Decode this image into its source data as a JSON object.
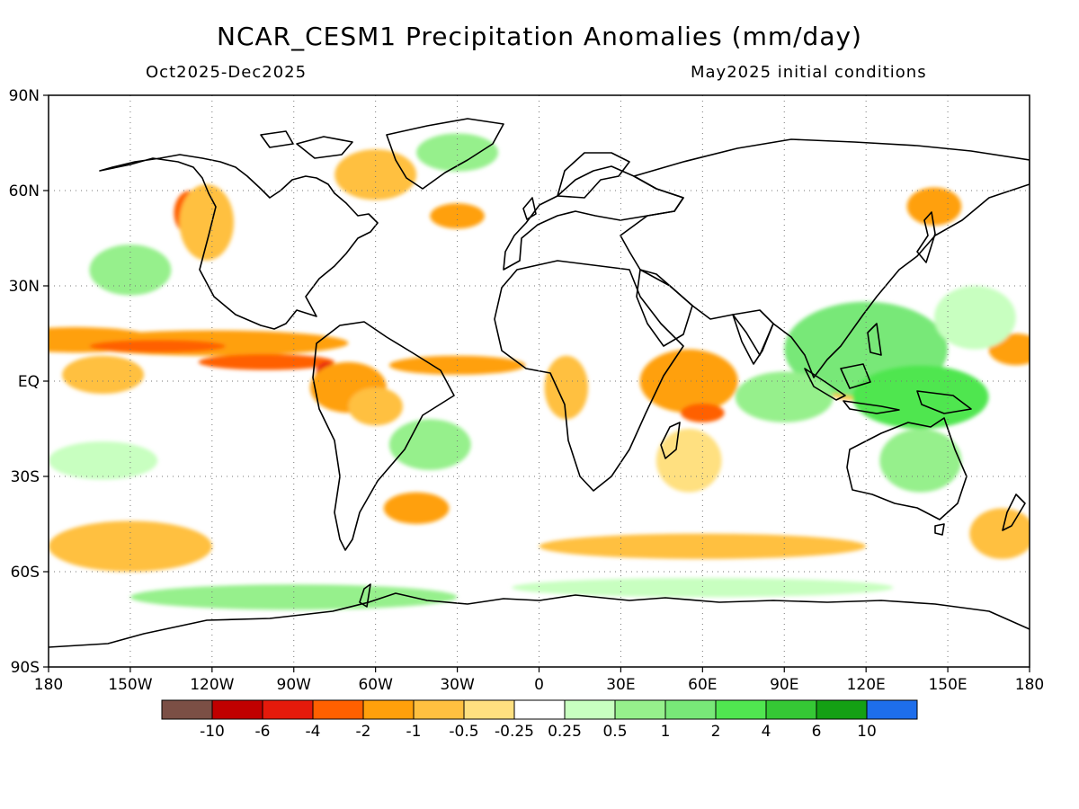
{
  "title": "NCAR_CESM1 Precipitation Anomalies (mm/day)",
  "subtitle_left": "Oct2025-Dec2025",
  "subtitle_right": "May2025 initial conditions",
  "map": {
    "projection": "equirectangular",
    "lon_range": [
      -180,
      180
    ],
    "lat_range": [
      -90,
      90
    ],
    "grid": "dotted",
    "lat_ticks": [
      {
        "value": 90,
        "label": "90N"
      },
      {
        "value": 60,
        "label": "60N"
      },
      {
        "value": 30,
        "label": "30N"
      },
      {
        "value": 0,
        "label": "EQ"
      },
      {
        "value": -30,
        "label": "30S"
      },
      {
        "value": -60,
        "label": "60S"
      },
      {
        "value": -90,
        "label": "90S"
      }
    ],
    "lon_ticks": [
      {
        "value": -180,
        "label": "180"
      },
      {
        "value": -150,
        "label": "150W"
      },
      {
        "value": -120,
        "label": "120W"
      },
      {
        "value": -90,
        "label": "90W"
      },
      {
        "value": -60,
        "label": "60W"
      },
      {
        "value": -30,
        "label": "30W"
      },
      {
        "value": 0,
        "label": "0"
      },
      {
        "value": 30,
        "label": "30E"
      },
      {
        "value": 60,
        "label": "60E"
      },
      {
        "value": 90,
        "label": "90E"
      },
      {
        "value": 120,
        "label": "120E"
      },
      {
        "value": 150,
        "label": "150E"
      },
      {
        "value": 180,
        "label": "180"
      }
    ]
  },
  "colorbar": {
    "colors": [
      "#7b4f45",
      "#c00000",
      "#e51a0b",
      "#ff6000",
      "#ffa00b",
      "#ffc040",
      "#ffe080",
      "#ffffff",
      "#c8ffc0",
      "#96f08c",
      "#78e878",
      "#50e650",
      "#35c835",
      "#14a014",
      "#1e6eeb"
    ],
    "labels": [
      "-10",
      "-6",
      "-4",
      "-2",
      "-1",
      "-0.5",
      "-0.25",
      "0.25",
      "0.5",
      "1",
      "2",
      "4",
      "6",
      "10"
    ]
  },
  "anomaly_regions": [
    {
      "lon": -170,
      "lat": 13,
      "rlon": 30,
      "rlat": 4,
      "color": "#ffa00b"
    },
    {
      "lon": -120,
      "lat": 12,
      "rlon": 50,
      "rlat": 4,
      "color": "#ffa00b"
    },
    {
      "lon": -140,
      "lat": 11,
      "rlon": 25,
      "rlat": 2,
      "color": "#ff6000"
    },
    {
      "lon": -100,
      "lat": 6,
      "rlon": 25,
      "rlat": 2.5,
      "color": "#ff6000"
    },
    {
      "lon": -160,
      "lat": 2,
      "rlon": 15,
      "rlat": 6,
      "color": "#ffc040"
    },
    {
      "lon": -78,
      "lat": 2,
      "rlon": 4,
      "rlat": 4,
      "color": "#e51a0b"
    },
    {
      "lon": -70,
      "lat": -2,
      "rlon": 14,
      "rlat": 8,
      "color": "#ffa00b"
    },
    {
      "lon": -60,
      "lat": -8,
      "rlon": 10,
      "rlat": 6,
      "color": "#ffc040"
    },
    {
      "lon": -30,
      "lat": 5,
      "rlon": 25,
      "rlat": 3,
      "color": "#ffa00b"
    },
    {
      "lon": 10,
      "lat": -2,
      "rlon": 8,
      "rlat": 10,
      "color": "#ffc040"
    },
    {
      "lon": 55,
      "lat": 0,
      "rlon": 18,
      "rlat": 10,
      "color": "#ffa00b"
    },
    {
      "lon": 60,
      "lat": -10,
      "rlon": 8,
      "rlat": 3,
      "color": "#ff6000"
    },
    {
      "lon": 55,
      "lat": -25,
      "rlon": 12,
      "rlat": 10,
      "color": "#ffe080"
    },
    {
      "lon": -128,
      "lat": 53,
      "rlon": 6,
      "rlat": 7,
      "color": "#ff6000"
    },
    {
      "lon": -122,
      "lat": 50,
      "rlon": 10,
      "rlat": 12,
      "color": "#ffc040"
    },
    {
      "lon": -60,
      "lat": 65,
      "rlon": 15,
      "rlat": 8,
      "color": "#ffc040"
    },
    {
      "lon": -30,
      "lat": 52,
      "rlon": 10,
      "rlat": 4,
      "color": "#ffa00b"
    },
    {
      "lon": 145,
      "lat": 55,
      "rlon": 10,
      "rlat": 6,
      "color": "#ffa00b"
    },
    {
      "lon": 175,
      "lat": 10,
      "rlon": 10,
      "rlat": 5,
      "color": "#ffa00b"
    },
    {
      "lon": -150,
      "lat": -52,
      "rlon": 30,
      "rlat": 8,
      "color": "#ffc040"
    },
    {
      "lon": 60,
      "lat": -52,
      "rlon": 60,
      "rlat": 4,
      "color": "#ffc040"
    },
    {
      "lon": -45,
      "lat": -40,
      "rlon": 12,
      "rlat": 5,
      "color": "#ffa00b"
    },
    {
      "lon": 115,
      "lat": 0,
      "rlon": 12,
      "rlat": 6,
      "color": "#ffc040"
    },
    {
      "lon": 170,
      "lat": -48,
      "rlon": 12,
      "rlat": 8,
      "color": "#ffc040"
    },
    {
      "lon": 120,
      "lat": 10,
      "rlon": 30,
      "rlat": 15,
      "color": "#78e878"
    },
    {
      "lon": 140,
      "lat": -5,
      "rlon": 25,
      "rlat": 10,
      "color": "#50e650"
    },
    {
      "lon": 140,
      "lat": -25,
      "rlon": 15,
      "rlat": 10,
      "color": "#96f08c"
    },
    {
      "lon": 90,
      "lat": -5,
      "rlon": 18,
      "rlat": 8,
      "color": "#96f08c"
    },
    {
      "lon": -150,
      "lat": 35,
      "rlon": 15,
      "rlat": 8,
      "color": "#96f08c"
    },
    {
      "lon": -40,
      "lat": -20,
      "rlon": 15,
      "rlat": 8,
      "color": "#96f08c"
    },
    {
      "lon": -90,
      "lat": -68,
      "rlon": 60,
      "rlat": 4,
      "color": "#96f08c"
    },
    {
      "lon": 60,
      "lat": -65,
      "rlon": 70,
      "rlat": 3,
      "color": "#c8ffc0"
    },
    {
      "lon": -30,
      "lat": 72,
      "rlon": 15,
      "rlat": 6,
      "color": "#96f08c"
    },
    {
      "lon": -160,
      "lat": -25,
      "rlon": 20,
      "rlat": 6,
      "color": "#c8ffc0"
    },
    {
      "lon": 160,
      "lat": 20,
      "rlon": 15,
      "rlat": 10,
      "color": "#c8ffc0"
    }
  ]
}
